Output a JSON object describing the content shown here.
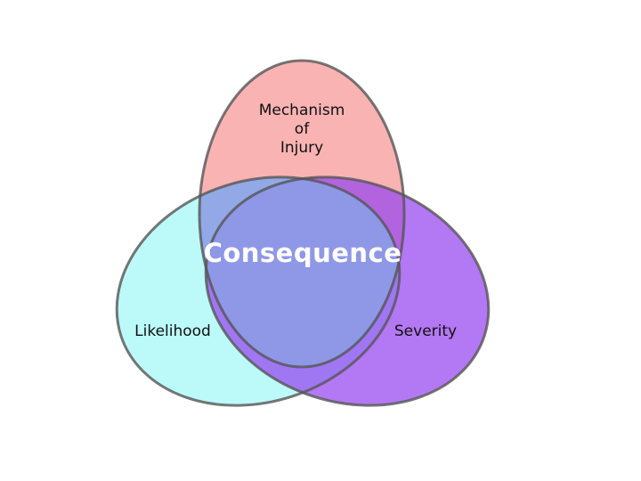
{
  "diagram": {
    "type": "venn-3",
    "sets": [
      {
        "id": "mechanism",
        "label_lines": [
          "Mechanism",
          "of",
          "Injury"
        ],
        "color": "#fa9a9a"
      },
      {
        "id": "likelihood",
        "label": "Likelihood",
        "color": "#a8fafa"
      },
      {
        "id": "severity",
        "label": "Severity",
        "color": "#a55af0"
      }
    ],
    "center_label": "Consequence",
    "center_color": "#8f9fe4",
    "outline_color": "#555555"
  }
}
